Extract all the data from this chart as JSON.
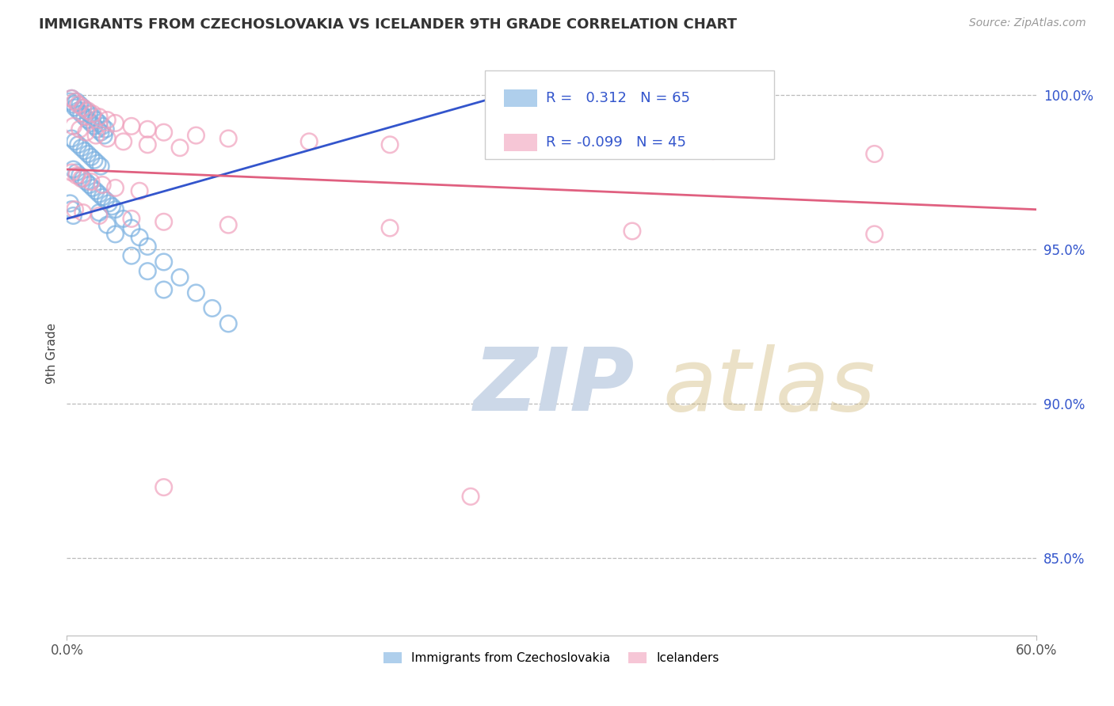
{
  "title": "IMMIGRANTS FROM CZECHOSLOVAKIA VS ICELANDER 9TH GRADE CORRELATION CHART",
  "source_text": "Source: ZipAtlas.com",
  "ylabel": "9th Grade",
  "xlim": [
    0.0,
    0.6
  ],
  "ylim": [
    0.825,
    1.008
  ],
  "yticks": [
    0.85,
    0.9,
    0.95,
    1.0
  ],
  "ytick_labels": [
    "85.0%",
    "90.0%",
    "95.0%",
    "100.0%"
  ],
  "xticks": [
    0.0,
    0.6
  ],
  "xtick_labels": [
    "0.0%",
    "60.0%"
  ],
  "legend1_label": "Immigrants from Czechoslovakia",
  "legend2_label": "Icelanders",
  "R1": 0.312,
  "N1": 65,
  "R2": -0.099,
  "N2": 45,
  "blue_color": "#7ab0e0",
  "pink_color": "#f0a0bc",
  "blue_line_color": "#3355cc",
  "pink_line_color": "#e06080",
  "background_color": "#ffffff",
  "blue_scatter_x": [
    0.002,
    0.003,
    0.004,
    0.005,
    0.006,
    0.007,
    0.008,
    0.009,
    0.01,
    0.011,
    0.012,
    0.013,
    0.014,
    0.015,
    0.016,
    0.017,
    0.018,
    0.019,
    0.02,
    0.021,
    0.022,
    0.023,
    0.024,
    0.003,
    0.005,
    0.007,
    0.009,
    0.011,
    0.013,
    0.015,
    0.017,
    0.019,
    0.021,
    0.004,
    0.006,
    0.008,
    0.01,
    0.012,
    0.014,
    0.016,
    0.018,
    0.02,
    0.022,
    0.024,
    0.026,
    0.028,
    0.03,
    0.035,
    0.04,
    0.045,
    0.05,
    0.06,
    0.07,
    0.08,
    0.09,
    0.1,
    0.02,
    0.025,
    0.03,
    0.04,
    0.05,
    0.06,
    0.002,
    0.003,
    0.004
  ],
  "blue_scatter_y": [
    0.998,
    0.999,
    0.997,
    0.996,
    0.998,
    0.995,
    0.997,
    0.994,
    0.996,
    0.993,
    0.995,
    0.992,
    0.994,
    0.991,
    0.993,
    0.99,
    0.992,
    0.989,
    0.991,
    0.988,
    0.99,
    0.987,
    0.989,
    0.986,
    0.985,
    0.984,
    0.983,
    0.982,
    0.981,
    0.98,
    0.979,
    0.978,
    0.977,
    0.976,
    0.975,
    0.974,
    0.973,
    0.972,
    0.971,
    0.97,
    0.969,
    0.968,
    0.967,
    0.966,
    0.965,
    0.964,
    0.963,
    0.96,
    0.957,
    0.954,
    0.951,
    0.946,
    0.941,
    0.936,
    0.931,
    0.926,
    0.962,
    0.958,
    0.955,
    0.948,
    0.943,
    0.937,
    0.965,
    0.963,
    0.961
  ],
  "pink_scatter_x": [
    0.003,
    0.005,
    0.007,
    0.01,
    0.013,
    0.016,
    0.02,
    0.025,
    0.03,
    0.04,
    0.05,
    0.06,
    0.08,
    0.1,
    0.15,
    0.2,
    0.3,
    0.4,
    0.5,
    0.004,
    0.008,
    0.012,
    0.018,
    0.025,
    0.035,
    0.05,
    0.07,
    0.003,
    0.006,
    0.009,
    0.015,
    0.022,
    0.03,
    0.045,
    0.005,
    0.01,
    0.02,
    0.04,
    0.06,
    0.1,
    0.2,
    0.35,
    0.5,
    0.06,
    0.25
  ],
  "pink_scatter_y": [
    0.999,
    0.998,
    0.997,
    0.996,
    0.995,
    0.994,
    0.993,
    0.992,
    0.991,
    0.99,
    0.989,
    0.988,
    0.987,
    0.986,
    0.985,
    0.984,
    0.983,
    0.982,
    0.981,
    0.99,
    0.989,
    0.988,
    0.987,
    0.986,
    0.985,
    0.984,
    0.983,
    0.975,
    0.974,
    0.973,
    0.972,
    0.971,
    0.97,
    0.969,
    0.963,
    0.962,
    0.961,
    0.96,
    0.959,
    0.958,
    0.957,
    0.956,
    0.955,
    0.873,
    0.87
  ]
}
